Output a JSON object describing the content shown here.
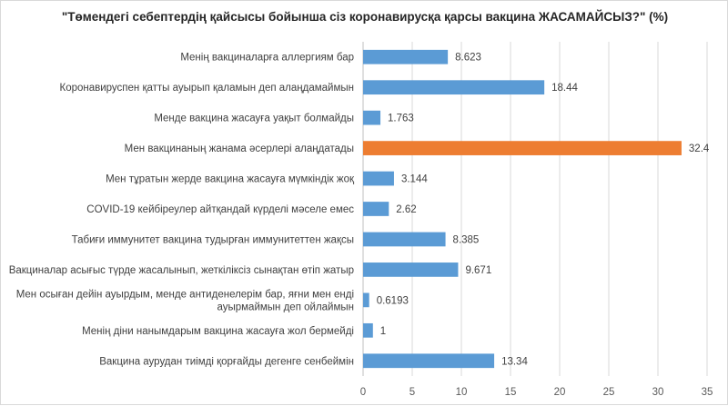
{
  "chart_data": {
    "type": "bar",
    "orientation": "horizontal",
    "title": "\"Төмендегі себептердің қайсысы бойынша сіз коронавирусқа қарсы вакцина ЖАСАМАЙСЫЗ?\" (%)",
    "xlabel": "",
    "ylabel": "",
    "xlim": [
      0,
      35
    ],
    "x_ticks": [
      0,
      5,
      10,
      15,
      20,
      25,
      30,
      35
    ],
    "grid": true,
    "legend": "none",
    "categories": [
      [
        "Менің вакциналарға аллергиям бар"
      ],
      [
        "Коронавируспен қатты ауырып қаламын деп алаңдамаймын"
      ],
      [
        "Менде вакцина жасауға уақыт болмайды"
      ],
      [
        "Мен вакцинаның жанама әсерлері алаңдатады"
      ],
      [
        "Мен тұратын жерде вакцина жасауға мүмкіндік жоқ"
      ],
      [
        "COVID-19 кейбіреулер айтқандай күрделі мәселе емес"
      ],
      [
        "Табиғи иммунитет вакцина тудырған иммунитеттен жақсы"
      ],
      [
        "Вакциналар асығыс түрде жасалынып, жеткіліксіз сынақтан өтіп жатыр"
      ],
      [
        "Мен осыған дейін ауырдым, менде антиденелерім бар, яғни мен енді",
        "ауырмаймын деп ойлаймын"
      ],
      [
        "Менің діни нанымдарым вакцина жасауға жол бермейді"
      ],
      [
        "Вакцина аурудан тиімді қорғайды дегенге сенбеймін"
      ]
    ],
    "values": [
      8.623,
      18.44,
      1.763,
      32.4,
      3.144,
      2.62,
      8.385,
      9.671,
      0.6193,
      1,
      13.34
    ],
    "value_labels": [
      "8.623",
      "18.44",
      "1.763",
      "32.4",
      "3.144",
      "2.62",
      "8.385",
      "9.671",
      "0.6193",
      "1",
      "13.34"
    ],
    "colors": {
      "bar": "#5b9bd5",
      "highlight": "#ed7d31",
      "grid": "#d9d9d9",
      "axis": "#bfbfbf"
    },
    "highlight_index": 3
  }
}
